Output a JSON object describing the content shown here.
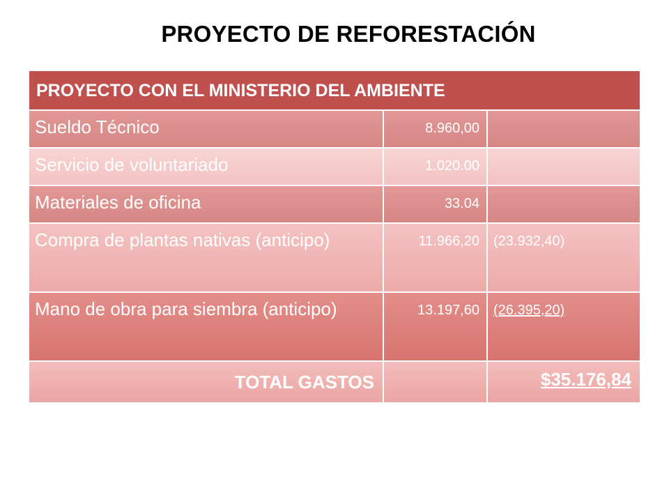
{
  "slide": {
    "title": "PROYECTO DE REFORESTACIÓN"
  },
  "table": {
    "header": "PROYECTO CON EL MINISTERIO DEL AMBIENTE",
    "rows": [
      {
        "concept": "Sueldo  Técnico",
        "amount": "8.960,00",
        "advance": ""
      },
      {
        "concept": "Servicio de voluntariado",
        "amount": "1.020.00",
        "advance": ""
      },
      {
        "concept": "Materiales de oficina",
        "amount": "33.04",
        "advance": ""
      },
      {
        "concept": "Compra de plantas nativas (anticipo)",
        "amount": "11.966,20",
        "advance": "(23.932,40)"
      },
      {
        "concept": "Mano de obra para siembra (anticipo)",
        "amount": "13.197,60",
        "advance": "(26.395,20)"
      }
    ],
    "total": {
      "label": "TOTAL GASTOS",
      "amount": "",
      "value": "$35.176,84"
    }
  },
  "colors": {
    "header_bg": "#c0504d",
    "row_dark": "#dc8f8d",
    "row_light": "#f5ccca",
    "text": "#ffffff"
  }
}
